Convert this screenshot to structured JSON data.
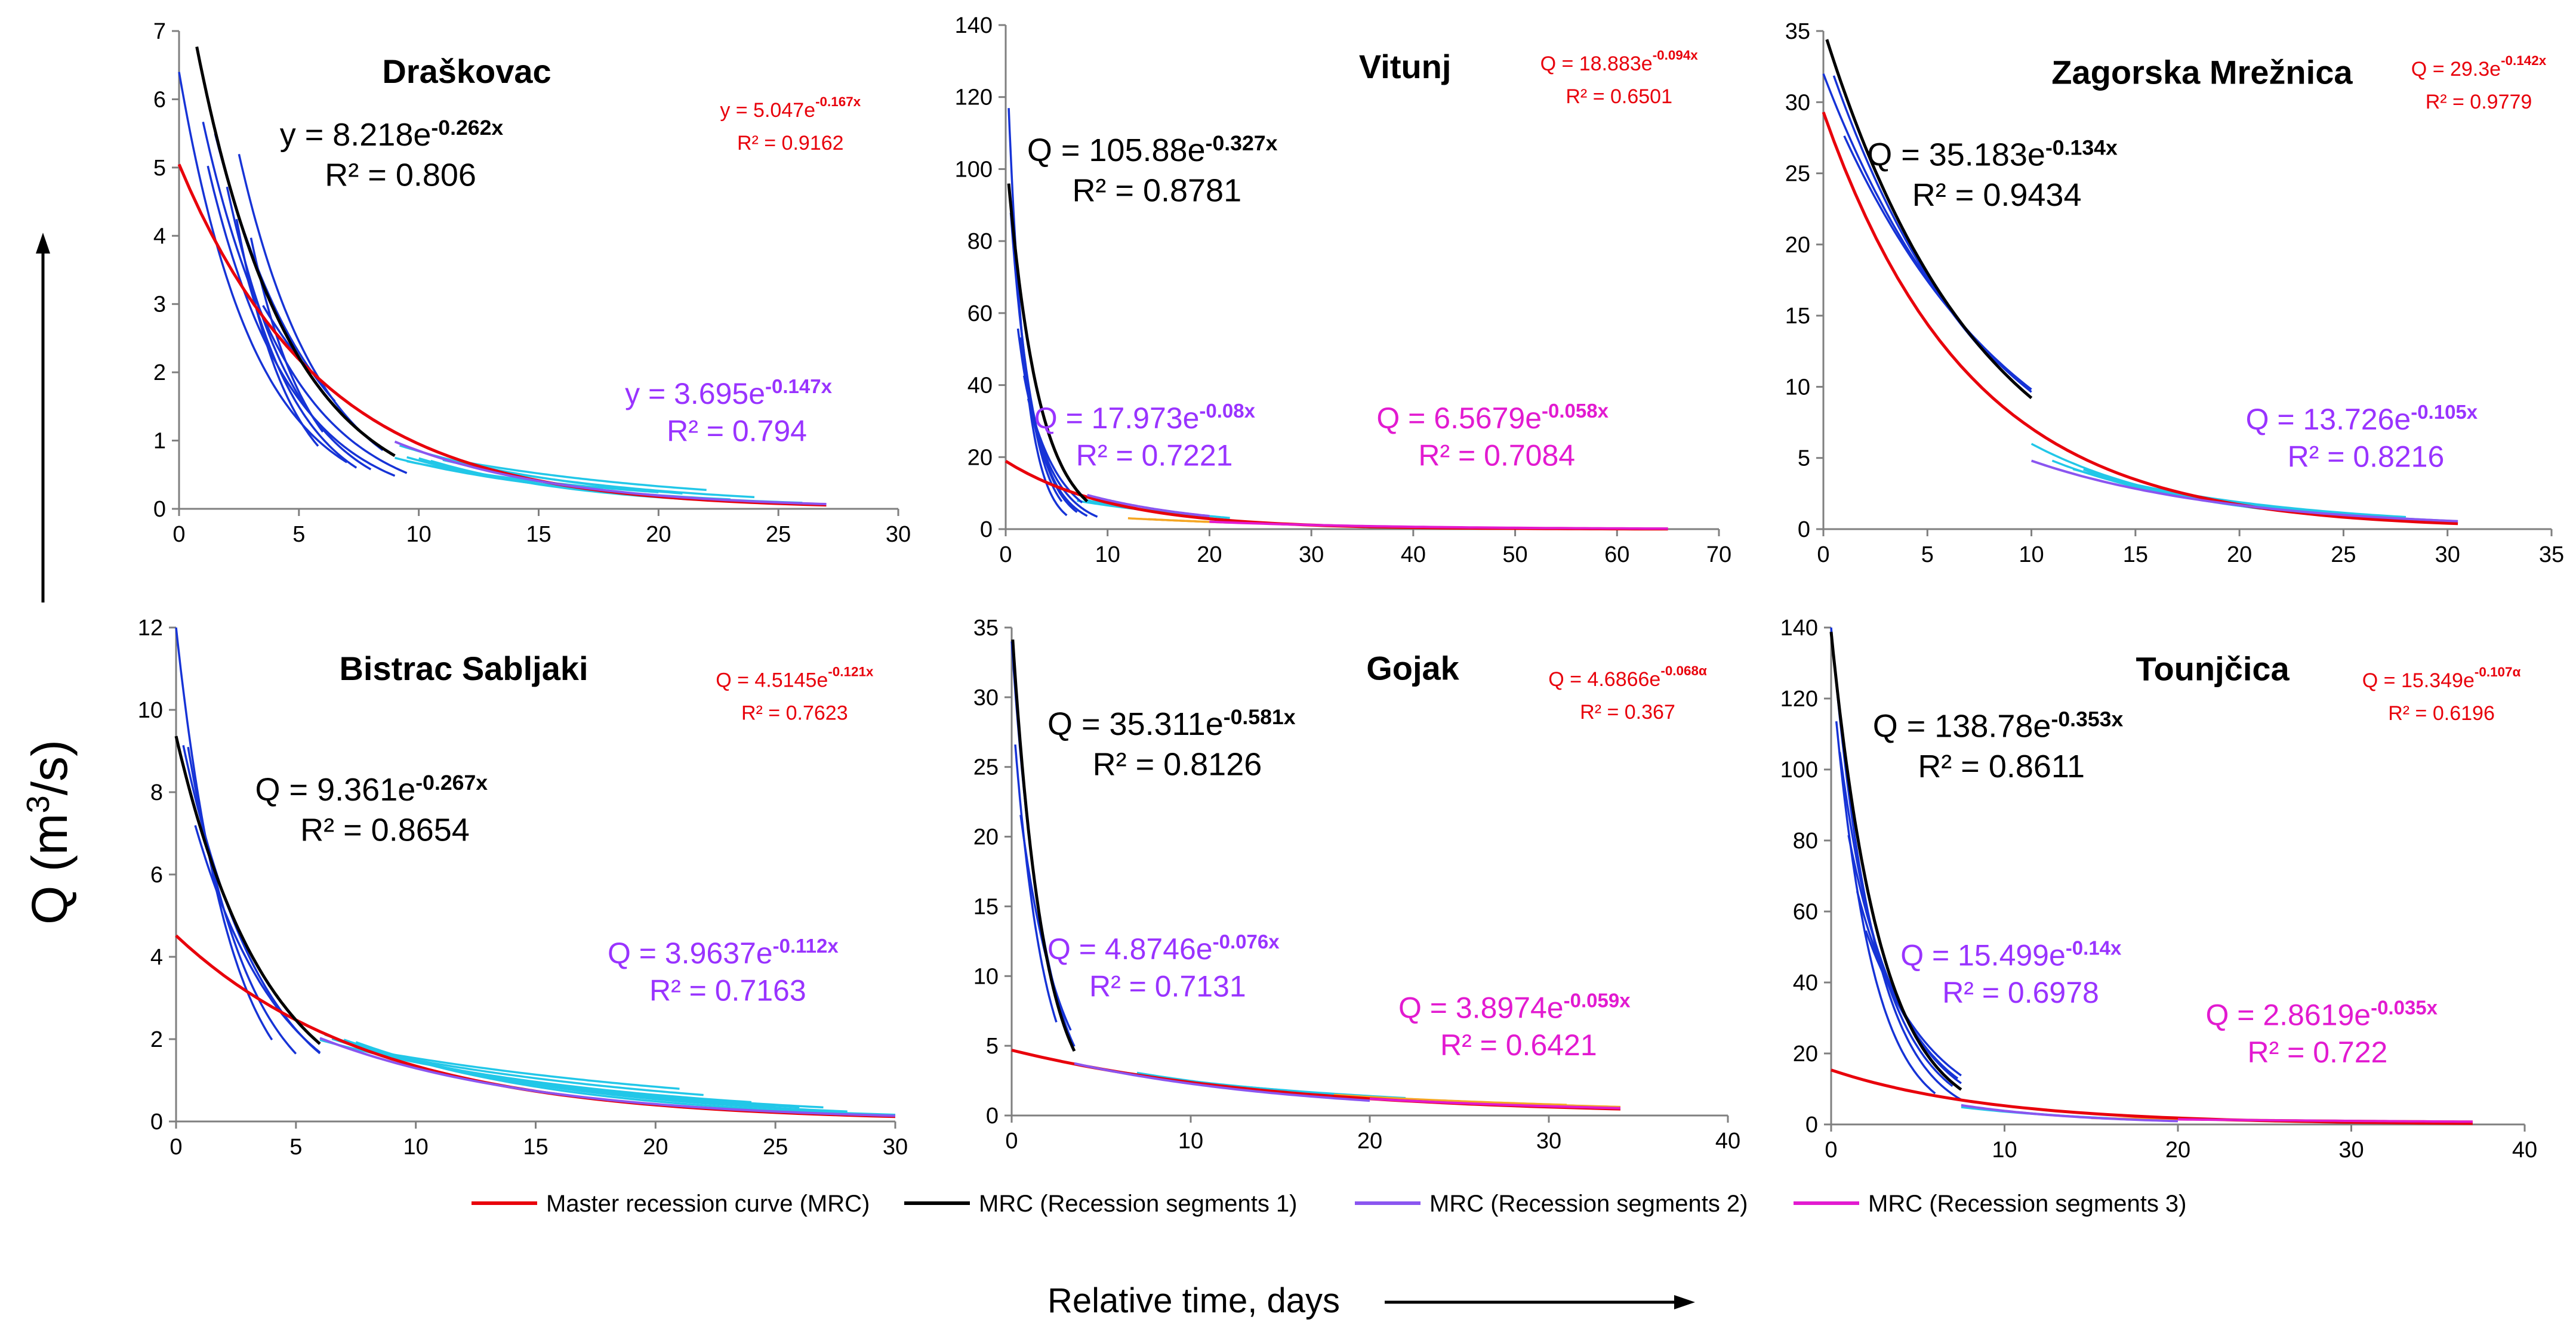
{
  "figure": {
    "ylabel_main": "Q (m",
    "ylabel_sup": "3",
    "ylabel_tail": "/s)",
    "xlabel": "Relative time, days"
  },
  "legend": [
    {
      "label": "Master recession curve (MRC)",
      "color": "#e8000b"
    },
    {
      "label": "MRC (Recession segments 1)",
      "color": "#000000"
    },
    {
      "label": "MRC (Recession segments 2)",
      "color": "#8a55f0"
    },
    {
      "label": "MRC (Recession segments 3)",
      "color": "#e21ad0"
    }
  ],
  "chart_data": [
    {
      "type": "line",
      "title": "Draškovac",
      "xlim": [
        0,
        30
      ],
      "xticks": [
        0,
        5,
        10,
        15,
        20,
        25,
        30
      ],
      "ylim": [
        0,
        7
      ],
      "yticks": [
        0,
        1,
        2,
        3,
        4,
        5,
        6,
        7
      ],
      "master": {
        "a": 5.047,
        "b": 0.167,
        "x": [
          0,
          27
        ],
        "eq": "y = 5.047e",
        "exp": "-0.167x",
        "r2": "R² = 0.9162"
      },
      "seg1": {
        "a": 8.218,
        "b": 0.262,
        "x": [
          0.6,
          9
        ],
        "eq": "y = 8.218e",
        "exp": "-0.262x",
        "r2": "R² = 0.806"
      },
      "seg2": {
        "a": 3.695,
        "b": 0.147,
        "x": [
          9,
          27
        ],
        "eq": "y = 3.695e",
        "exp": "-0.147x",
        "r2": "R² = 0.794"
      },
      "segments1": [
        {
          "a": 6.4,
          "b": 0.32,
          "x0": 0,
          "x1": 7
        },
        {
          "a": 7.2,
          "b": 0.3,
          "x0": 1.2,
          "x1": 9
        },
        {
          "a": 9.5,
          "b": 0.35,
          "x0": 2.0,
          "x1": 8
        },
        {
          "a": 11.0,
          "b": 0.3,
          "x0": 2.5,
          "x1": 8.5
        },
        {
          "a": 14.0,
          "b": 0.42,
          "x0": 3.0,
          "x1": 6
        },
        {
          "a": 8.0,
          "b": 0.25,
          "x0": 1.5,
          "x1": 6.5
        },
        {
          "a": 12.5,
          "b": 0.45,
          "x0": 2.4,
          "x1": 5.8
        },
        {
          "a": 6.0,
          "b": 0.2,
          "x0": 3.5,
          "x1": 5
        },
        {
          "a": 10.0,
          "b": 0.38,
          "x0": 2.8,
          "x1": 7.4
        },
        {
          "a": 7.5,
          "b": 0.28,
          "x0": 1.0,
          "x1": 9.5
        }
      ],
      "segments2": [
        {
          "a": 2.2,
          "b": 0.12,
          "x0": 9,
          "x1": 23
        },
        {
          "a": 2.6,
          "b": 0.13,
          "x0": 9.5,
          "x1": 26
        },
        {
          "a": 3.0,
          "b": 0.14,
          "x0": 10,
          "x1": 27
        },
        {
          "a": 1.8,
          "b": 0.1,
          "x0": 9.5,
          "x1": 20
        },
        {
          "a": 2.4,
          "b": 0.11,
          "x0": 11,
          "x1": 24
        },
        {
          "a": 3.4,
          "b": 0.15,
          "x0": 10.5,
          "x1": 25
        },
        {
          "a": 2.0,
          "b": 0.09,
          "x0": 12,
          "x1": 22
        },
        {
          "a": 2.8,
          "b": 0.12,
          "x0": 9.2,
          "x1": 21
        }
      ],
      "segments3": []
    },
    {
      "type": "line",
      "title": "Vitunj",
      "xlim": [
        0,
        70
      ],
      "xticks": [
        0,
        10,
        20,
        30,
        40,
        50,
        60,
        70
      ],
      "ylim": [
        0,
        140
      ],
      "yticks": [
        0,
        20,
        40,
        60,
        80,
        100,
        120,
        140
      ],
      "master": {
        "a": 18.883,
        "b": 0.094,
        "x": [
          0,
          65
        ],
        "eq": "Q = 18.883e",
        "exp": "-0.094x",
        "r2": "R² = 0.6501"
      },
      "seg1": {
        "a": 105.88,
        "b": 0.327,
        "x": [
          0.3,
          8
        ],
        "eq": "Q = 105.88e",
        "exp": "-0.327x",
        "r2": "R² = 0.8781"
      },
      "seg2": {
        "a": 17.973,
        "b": 0.08,
        "x": [
          8,
          20
        ],
        "eq": "Q = 17.973e",
        "exp": "-0.08x",
        "r2": "R² = 0.7221"
      },
      "seg3": {
        "a": 6.5679,
        "b": 0.058,
        "x": [
          20,
          65
        ],
        "eq": "Q = 6.5679e",
        "exp": "-0.058x",
        "r2": "R² = 0.7084"
      },
      "segments1": [
        {
          "a": 140,
          "b": 0.6,
          "x0": 0.3,
          "x1": 6
        },
        {
          "a": 110,
          "b": 0.45,
          "x0": 0.5,
          "x1": 7
        },
        {
          "a": 90,
          "b": 0.4,
          "x0": 1.2,
          "x1": 8
        },
        {
          "a": 80,
          "b": 0.35,
          "x0": 1.8,
          "x1": 9
        },
        {
          "a": 120,
          "b": 0.5,
          "x0": 0.8,
          "x1": 5.5
        },
        {
          "a": 70,
          "b": 0.3,
          "x0": 2.2,
          "x1": 7.5
        },
        {
          "a": 100,
          "b": 0.42,
          "x0": 1.5,
          "x1": 6.8
        }
      ],
      "segments2": [
        {
          "a": 14,
          "b": 0.07,
          "x0": 8,
          "x1": 20
        },
        {
          "a": 18,
          "b": 0.08,
          "x0": 9,
          "x1": 22
        },
        {
          "a": 12,
          "b": 0.06,
          "x0": 7,
          "x1": 18
        }
      ],
      "segments3": [
        {
          "a": 5.5,
          "b": 0.05,
          "x0": 12,
          "x1": 25
        },
        {
          "a": 6.0,
          "b": 0.055,
          "x0": 14,
          "x1": 22
        }
      ]
    },
    {
      "type": "line",
      "title": "Zagorska Mrežnica",
      "xlim": [
        0,
        35
      ],
      "xticks": [
        0,
        5,
        10,
        15,
        20,
        25,
        30,
        35
      ],
      "ylim": [
        0,
        35
      ],
      "yticks": [
        0,
        5,
        10,
        15,
        20,
        25,
        30,
        35
      ],
      "master": {
        "a": 29.3,
        "b": 0.142,
        "x": [
          0,
          30.5
        ],
        "eq": "Q = 29.3e",
        "exp": "-0.142x",
        "r2": "R² = 0.9779"
      },
      "seg1": {
        "a": 35.183,
        "b": 0.134,
        "x": [
          0,
          10
        ],
        "eq": "Q = 35.183e",
        "exp": "-0.134x",
        "r2": "R² = 0.9434"
      },
      "seg2": {
        "a": 13.726,
        "b": 0.105,
        "x": [
          10,
          30.5
        ],
        "eq": "Q = 13.726e",
        "exp": "-0.105x",
        "r2": "R² = 0.8216"
      },
      "segments1": [
        {
          "a": 32,
          "b": 0.12,
          "x0": 0,
          "x1": 10
        },
        {
          "a": 34,
          "b": 0.13,
          "x0": 0.5,
          "x1": 9.5
        },
        {
          "a": 31,
          "b": 0.115,
          "x0": 1,
          "x1": 10
        }
      ],
      "segments2": [
        {
          "a": 22,
          "b": 0.13,
          "x0": 10,
          "x1": 21
        },
        {
          "a": 18,
          "b": 0.12,
          "x0": 11,
          "x1": 20
        },
        {
          "a": 14,
          "b": 0.1,
          "x0": 12,
          "x1": 28
        },
        {
          "a": 16,
          "b": 0.11,
          "x0": 13,
          "x1": 30.5
        },
        {
          "a": 20,
          "b": 0.125,
          "x0": 12.5,
          "x1": 22
        }
      ],
      "segments3": []
    },
    {
      "type": "line",
      "title": "Bistrac Sabljaki",
      "xlim": [
        0,
        30
      ],
      "xticks": [
        0,
        5,
        10,
        15,
        20,
        25,
        30
      ],
      "ylim": [
        0,
        12
      ],
      "yticks": [
        0,
        2,
        4,
        6,
        8,
        10,
        12
      ],
      "master": {
        "a": 4.5145,
        "b": 0.121,
        "x": [
          0,
          30
        ],
        "eq": "Q = 4.5145e",
        "exp": "-0.121x",
        "r2": "R² = 0.7623"
      },
      "seg1": {
        "a": 9.361,
        "b": 0.267,
        "x": [
          0,
          6
        ],
        "eq": "Q = 9.361e",
        "exp": "-0.267x",
        "r2": "R² = 0.8654"
      },
      "seg2": {
        "a": 3.9637,
        "b": 0.112,
        "x": [
          6,
          30
        ],
        "eq": "Q = 3.9637e",
        "exp": "-0.112x",
        "r2": "R² = 0.7163"
      },
      "segments1": [
        {
          "a": 12.0,
          "b": 0.45,
          "x0": 0,
          "x1": 4
        },
        {
          "a": 10.0,
          "b": 0.3,
          "x0": 0.3,
          "x1": 6
        },
        {
          "a": 9.0,
          "b": 0.28,
          "x0": 0.8,
          "x1": 6
        },
        {
          "a": 11.0,
          "b": 0.38,
          "x0": 0.5,
          "x1": 5
        }
      ],
      "segments2": [
        {
          "a": 3.2,
          "b": 0.08,
          "x0": 6,
          "x1": 24
        },
        {
          "a": 3.6,
          "b": 0.09,
          "x0": 6.5,
          "x1": 26
        },
        {
          "a": 4.0,
          "b": 0.1,
          "x0": 7,
          "x1": 28
        },
        {
          "a": 3.0,
          "b": 0.07,
          "x0": 8,
          "x1": 22
        },
        {
          "a": 4.4,
          "b": 0.11,
          "x0": 7.5,
          "x1": 30
        },
        {
          "a": 2.8,
          "b": 0.06,
          "x0": 9,
          "x1": 21
        },
        {
          "a": 3.8,
          "b": 0.095,
          "x0": 6.2,
          "x1": 25
        },
        {
          "a": 3.4,
          "b": 0.085,
          "x0": 10,
          "x1": 27
        }
      ],
      "segments3": []
    },
    {
      "type": "line",
      "title": "Gojak",
      "xlim": [
        0,
        40
      ],
      "xticks": [
        0,
        10,
        20,
        30,
        40
      ],
      "ylim": [
        0,
        35
      ],
      "yticks": [
        0,
        5,
        10,
        15,
        20,
        25,
        30,
        35
      ],
      "master": {
        "a": 4.6866,
        "b": 0.068,
        "x": [
          0,
          34
        ],
        "eq": "Q = 4.6866e",
        "exp": "-0.068α",
        "r2": "R² = 0.367"
      },
      "seg1": {
        "a": 35.311,
        "b": 0.581,
        "x": [
          0,
          3.5
        ],
        "eq": "Q = 35.311e",
        "exp": "-0.581x",
        "r2": "R² = 0.8126"
      },
      "seg2": {
        "a": 4.8746,
        "b": 0.076,
        "x": [
          3.5,
          20
        ],
        "eq": "Q = 4.8746e",
        "exp": "-0.076x",
        "r2": "R² = 0.7131"
      },
      "seg3": {
        "a": 3.8974,
        "b": 0.059,
        "x": [
          20,
          34
        ],
        "eq": "Q = 3.8974e",
        "exp": "-0.059x",
        "r2": "R² = 0.6421"
      },
      "segments1": [
        {
          "a": 34,
          "b": 0.55,
          "x0": 0,
          "x1": 3.5
        },
        {
          "a": 27,
          "b": 0.45,
          "x0": 0.5,
          "x1": 3.3
        },
        {
          "a": 30,
          "b": 0.6,
          "x0": 0.2,
          "x1": 2.5
        }
      ],
      "segments2": [
        {
          "a": 4.5,
          "b": 0.06,
          "x0": 6,
          "x1": 20
        },
        {
          "a": 5.0,
          "b": 0.07,
          "x0": 7,
          "x1": 18
        },
        {
          "a": 4.2,
          "b": 0.055,
          "x0": 8,
          "x1": 22
        }
      ],
      "segments3": [
        {
          "a": 4.0,
          "b": 0.055,
          "x0": 18,
          "x1": 34
        },
        {
          "a": 3.6,
          "b": 0.05,
          "x0": 20,
          "x1": 31
        }
      ]
    },
    {
      "type": "line",
      "title": "Tounjčica",
      "xlim": [
        0,
        40
      ],
      "xticks": [
        0,
        10,
        20,
        30,
        40
      ],
      "ylim": [
        0,
        140
      ],
      "yticks": [
        0,
        20,
        40,
        60,
        80,
        100,
        120,
        140
      ],
      "master": {
        "a": 15.349,
        "b": 0.107,
        "x": [
          0,
          37
        ],
        "eq": "Q = 15.349e",
        "exp": "-0.107α",
        "r2": "R² = 0.6196"
      },
      "seg1": {
        "a": 138.78,
        "b": 0.353,
        "x": [
          0,
          7.5
        ],
        "eq": "Q = 138.78e",
        "exp": "-0.353x",
        "r2": "R² = 0.8611"
      },
      "seg2": {
        "a": 15.499,
        "b": 0.14,
        "x": [
          7.5,
          20
        ],
        "eq": "Q = 15.499e",
        "exp": "-0.14x",
        "r2": "R² = 0.6978"
      },
      "seg3": {
        "a": 2.8619,
        "b": 0.035,
        "x": [
          20,
          37
        ],
        "eq": "Q = 2.8619e",
        "exp": "-0.035x",
        "r2": "R² = 0.722"
      },
      "segments1": [
        {
          "a": 140,
          "b": 0.4,
          "x0": 0,
          "x1": 7.5
        },
        {
          "a": 125,
          "b": 0.35,
          "x0": 0.5,
          "x1": 7
        },
        {
          "a": 110,
          "b": 0.3,
          "x0": 1,
          "x1": 7.5
        },
        {
          "a": 100,
          "b": 0.28,
          "x0": 1.5,
          "x1": 7.3
        },
        {
          "a": 130,
          "b": 0.45,
          "x0": 0.3,
          "x1": 6
        },
        {
          "a": 90,
          "b": 0.25,
          "x0": 2,
          "x1": 7.5
        }
      ],
      "segments2": [
        {
          "a": 12,
          "b": 0.12,
          "x0": 7.5,
          "x1": 20
        },
        {
          "a": 14,
          "b": 0.13,
          "x0": 8,
          "x1": 18
        }
      ],
      "segments3": [
        {
          "a": 3.0,
          "b": 0.035,
          "x0": 15,
          "x1": 37
        }
      ]
    }
  ]
}
